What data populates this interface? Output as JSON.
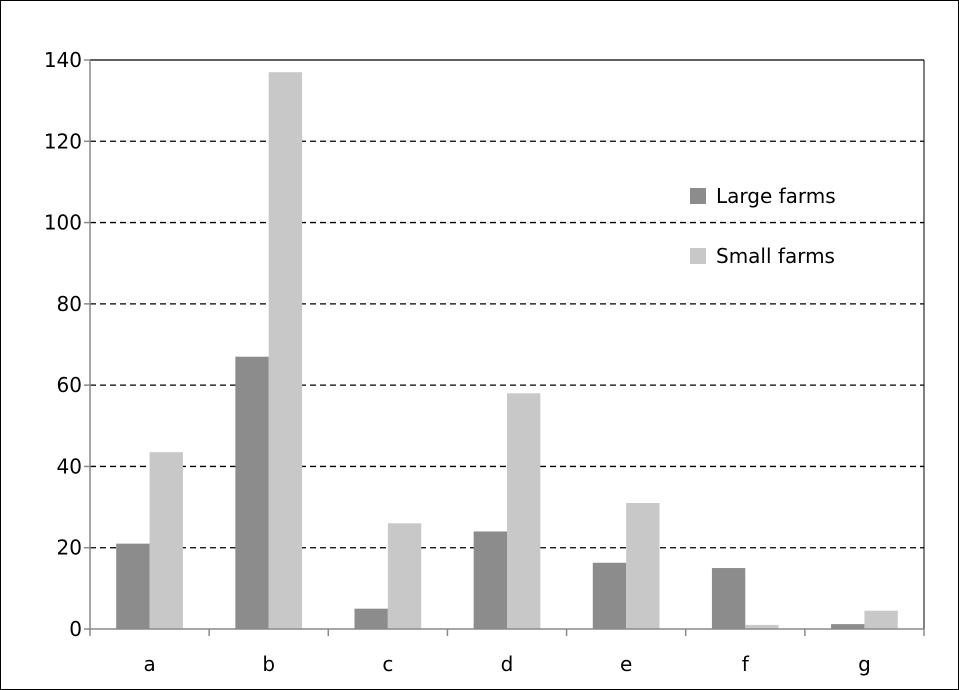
{
  "chart_data": {
    "type": "bar",
    "title": "",
    "xlabel": "",
    "ylabel": "",
    "categories": [
      "a",
      "b",
      "c",
      "d",
      "e",
      "f",
      "g"
    ],
    "series": [
      {
        "name": "Large farms",
        "color": "#8c8c8c",
        "values": [
          21,
          67,
          5,
          24,
          16.3,
          15,
          1.2
        ]
      },
      {
        "name": "Small farms",
        "color": "#c8c8c8",
        "values": [
          43.5,
          137,
          26,
          58,
          31,
          1,
          4.5
        ]
      }
    ],
    "ylim": [
      0,
      140
    ],
    "yticks": [
      0,
      20,
      40,
      60,
      80,
      100,
      120,
      140
    ],
    "grid": true,
    "grid_style": "dashed",
    "legend_position": "right-upper-inside"
  }
}
